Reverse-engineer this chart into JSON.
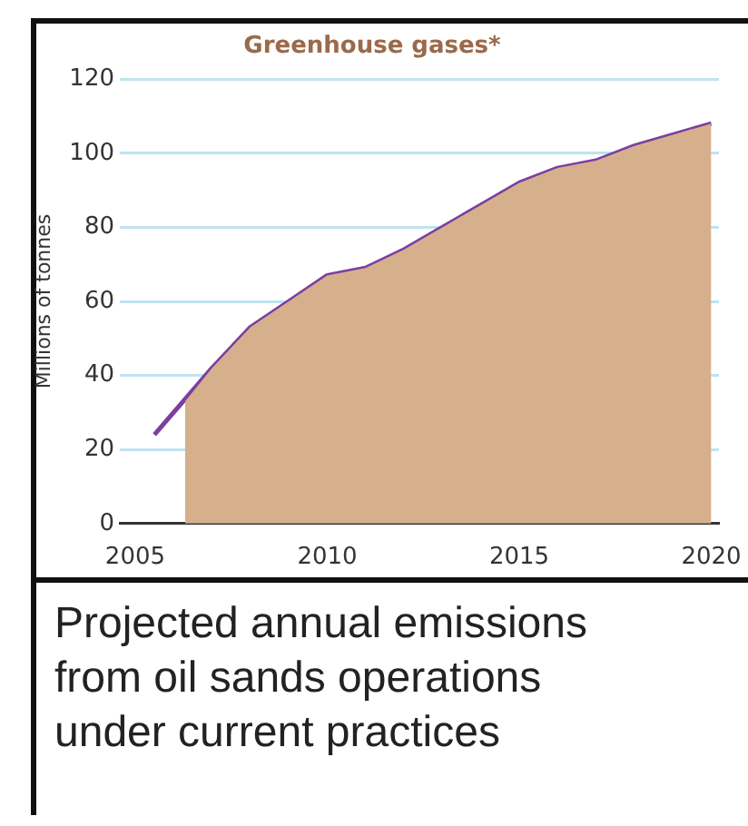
{
  "chart_data": {
    "type": "area",
    "title": "Greenhouse gases*",
    "ylabel": "Millions of tonnes",
    "x": [
      2005.5,
      2006,
      2007,
      2008,
      2009,
      2010,
      2011,
      2012,
      2013,
      2014,
      2015,
      2016,
      2017,
      2018,
      2019,
      2020
    ],
    "series": [
      {
        "color": "#d6b08c",
        "x": [
          2006.3,
          2007,
          2008,
          2009,
          2010,
          2011,
          2012,
          2013,
          2014,
          2015,
          2016,
          2017,
          2018,
          2019,
          2020
        ],
        "values": [
          33,
          42,
          53,
          60,
          67,
          69,
          74,
          80,
          86,
          92,
          96,
          98,
          102,
          105,
          108
        ]
      },
      {
        "type": "line",
        "color": "#7b3fa0",
        "values": [
          24,
          30,
          42,
          53,
          60,
          67,
          69,
          74,
          80,
          86,
          92,
          96,
          98,
          102,
          105,
          108
        ]
      }
    ],
    "xlim": [
      2004.6,
      2020.2
    ],
    "xticks": [
      2005,
      2010,
      2015,
      2020
    ],
    "ylim": [
      0,
      120
    ],
    "yticks": [
      0,
      20,
      40,
      60,
      80,
      100,
      120
    ],
    "grid": "y",
    "legend": false,
    "annotations": [
      "Projected annual emissions from oil sands operations under current practices"
    ]
  }
}
